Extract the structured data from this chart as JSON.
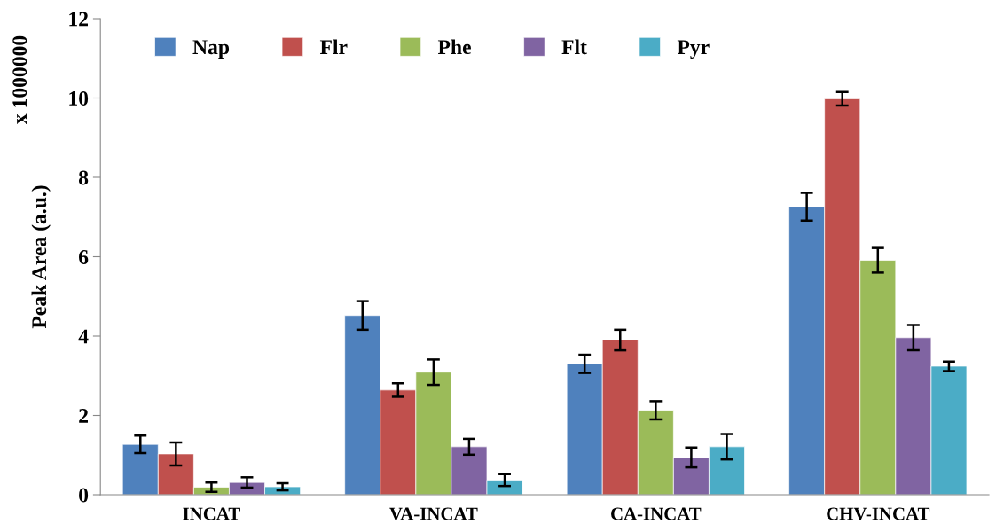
{
  "chart_data": {
    "type": "bar",
    "ylabel": "Peak Area (a.u.)",
    "annotations": [
      "x 1000000"
    ],
    "categories": [
      "INCAT",
      "VA-INCAT",
      "CA-INCAT",
      "CHV-INCAT"
    ],
    "series": [
      {
        "name": "Nap",
        "color": "#4f81bd",
        "values": [
          1.27,
          4.52,
          3.3,
          7.26
        ],
        "errors": [
          0.22,
          0.36,
          0.23,
          0.35
        ]
      },
      {
        "name": "Flr",
        "color": "#c0504d",
        "values": [
          1.03,
          2.64,
          3.9,
          9.98
        ],
        "errors": [
          0.29,
          0.17,
          0.26,
          0.17
        ]
      },
      {
        "name": "Phe",
        "color": "#9bbb59",
        "values": [
          0.19,
          3.09,
          2.13,
          5.91
        ],
        "errors": [
          0.12,
          0.32,
          0.23,
          0.31
        ]
      },
      {
        "name": "Flt",
        "color": "#8064a2",
        "values": [
          0.31,
          1.21,
          0.94,
          3.96
        ],
        "errors": [
          0.13,
          0.2,
          0.25,
          0.32
        ]
      },
      {
        "name": "Pyr",
        "color": "#4bacc6",
        "values": [
          0.2,
          0.37,
          1.21,
          3.24
        ],
        "errors": [
          0.09,
          0.15,
          0.32,
          0.12
        ]
      }
    ],
    "ylim": [
      0,
      12
    ],
    "yticks": [
      0,
      2,
      4,
      6,
      8,
      10,
      12
    ],
    "grid": false,
    "legend": "top"
  }
}
